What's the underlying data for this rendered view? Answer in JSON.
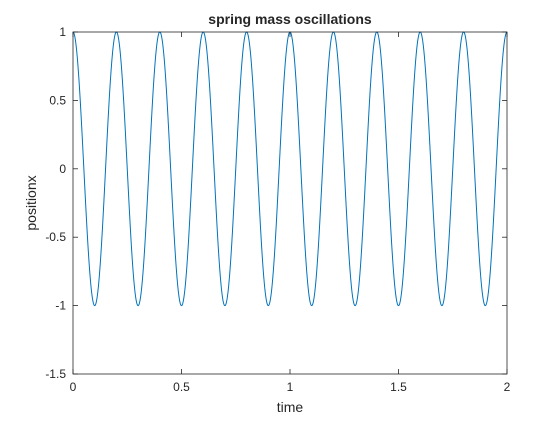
{
  "chart_data": {
    "type": "line",
    "title": "spring mass oscillations",
    "xlabel": "time",
    "ylabel": "positionx",
    "xlim": [
      0,
      2
    ],
    "ylim": [
      -1.5,
      1
    ],
    "x_ticks": [
      "0",
      "0.5",
      "1",
      "1.5",
      "2"
    ],
    "y_ticks": [
      "-1.5",
      "-1",
      "-0.5",
      "0",
      "0.5",
      "1"
    ],
    "grid": false,
    "line_color": "#0072bd",
    "series": [
      {
        "function": "cos(2*pi*5*t)",
        "amplitude": 1,
        "frequency_hz": 5,
        "period": 0.2,
        "t_start": 0,
        "t_end": 2,
        "sample_points": [
          [
            0,
            1
          ],
          [
            0.05,
            0
          ],
          [
            0.1,
            -1
          ],
          [
            0.15,
            0
          ],
          [
            0.2,
            1
          ],
          [
            0.3,
            -1
          ],
          [
            0.4,
            1
          ],
          [
            0.5,
            -1
          ],
          [
            0.6,
            1
          ],
          [
            0.7,
            -1
          ],
          [
            0.8,
            1
          ],
          [
            0.9,
            -1
          ],
          [
            1.0,
            1
          ],
          [
            1.1,
            -1
          ],
          [
            1.2,
            1
          ],
          [
            1.3,
            -1
          ],
          [
            1.4,
            1
          ],
          [
            1.5,
            -1
          ],
          [
            1.6,
            1
          ],
          [
            1.7,
            -1
          ],
          [
            1.8,
            1
          ],
          [
            1.9,
            -1
          ],
          [
            2.0,
            1
          ]
        ]
      }
    ]
  }
}
